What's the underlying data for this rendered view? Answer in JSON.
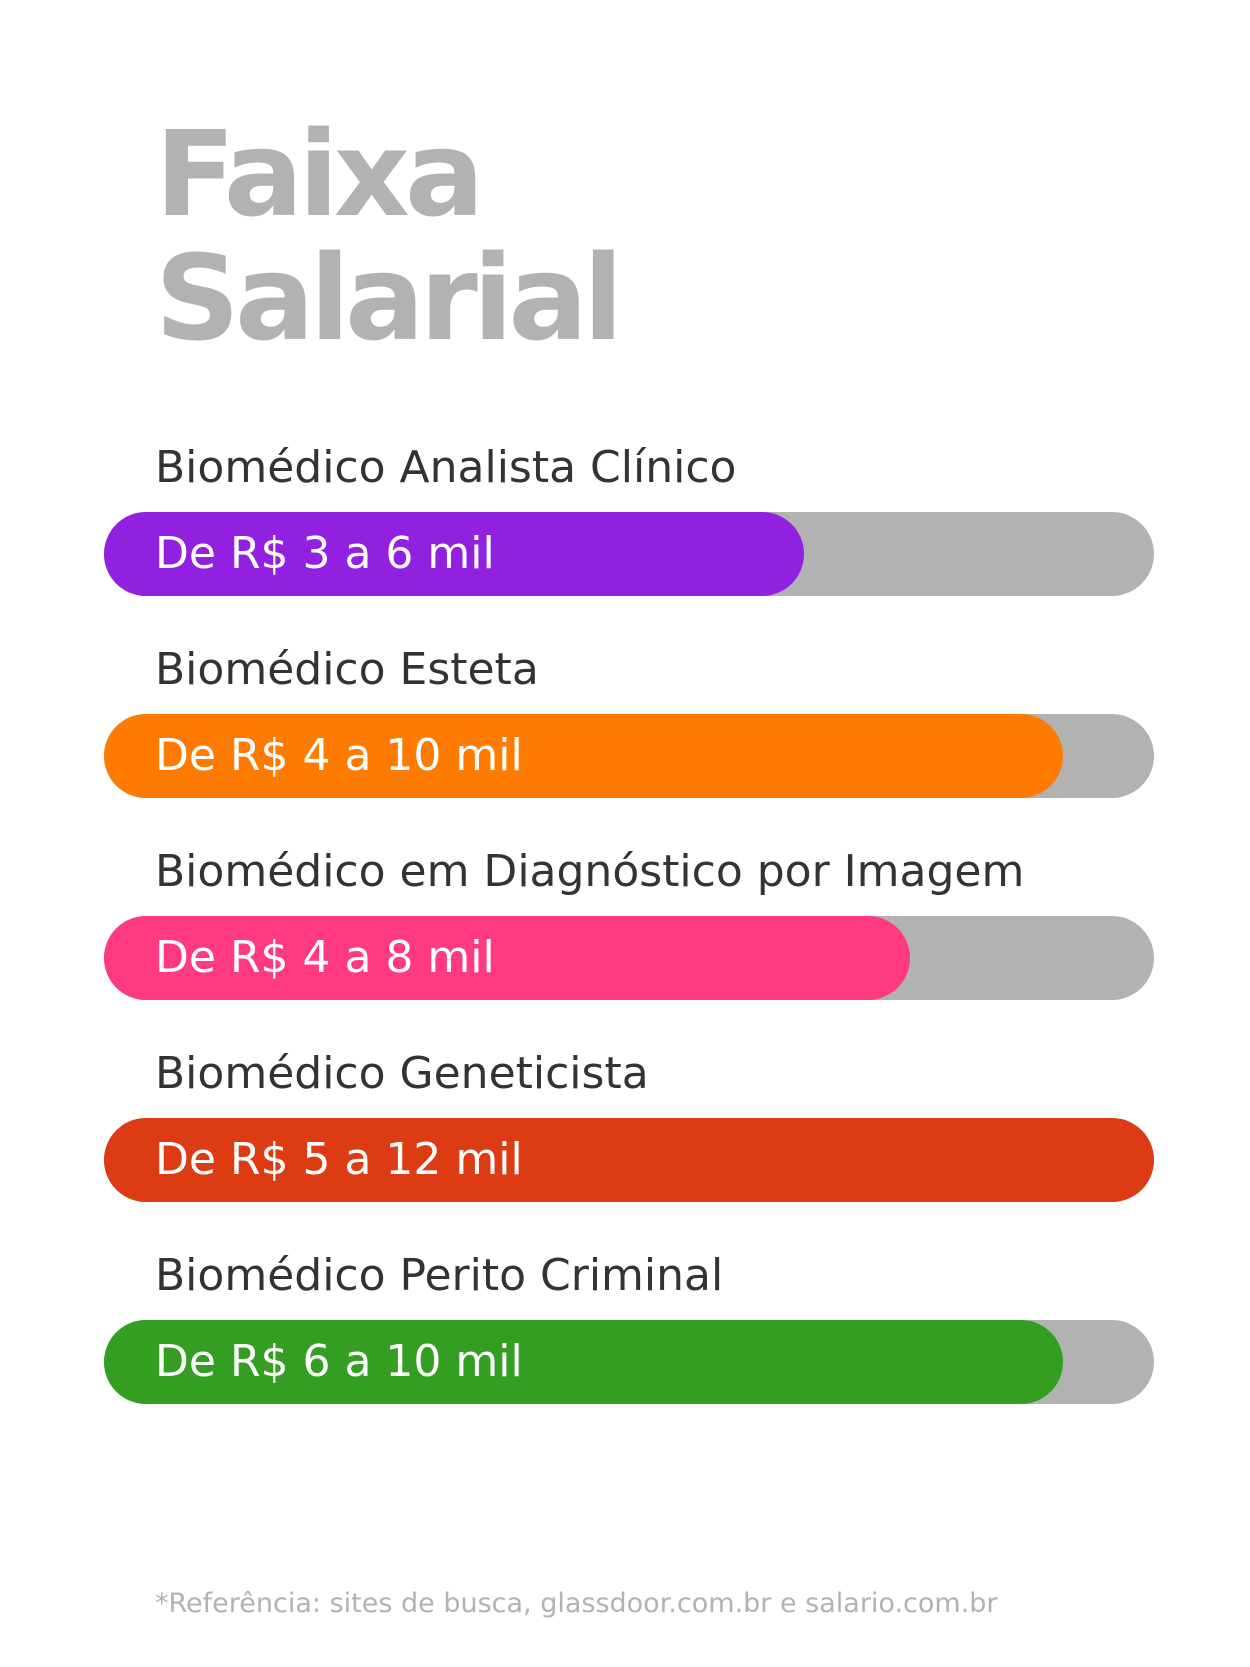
{
  "title": {
    "line1": "Faixa",
    "line2": "Salarial"
  },
  "chart_data": {
    "type": "bar",
    "categories": [
      "Biomédico Analista Clínico",
      "Biomédico Esteta",
      "Biomédico em Diagnóstico por Imagem",
      "Biomédico Geneticista",
      "Biomédico Perito Criminal"
    ],
    "series": [
      {
        "values": [
          6,
          10,
          8,
          12,
          10
        ]
      }
    ],
    "data_labels": [
      "De R$ 3 a 6 mil",
      "De R$ 4 a 10 mil",
      "De R$ 4 a 8 mil",
      "De R$ 5 a 12 mil",
      "De R$ 6 a 10 mil"
    ],
    "ranges": [
      [
        3,
        6
      ],
      [
        4,
        10
      ],
      [
        4,
        8
      ],
      [
        5,
        12
      ],
      [
        6,
        10
      ]
    ],
    "fill_fraction": [
      0.667,
      0.913,
      0.768,
      1.0,
      0.913
    ],
    "colors": [
      "#9120e0",
      "#ff7b00",
      "#ff3a80",
      "#dd3b14",
      "#339e22"
    ],
    "track_color": "#b2b2b2",
    "orientation": "horizontal",
    "legend": "none",
    "grid": false
  },
  "footnote": "*Referência: sites de busca, glassdoor.com.br e salario.com.br"
}
